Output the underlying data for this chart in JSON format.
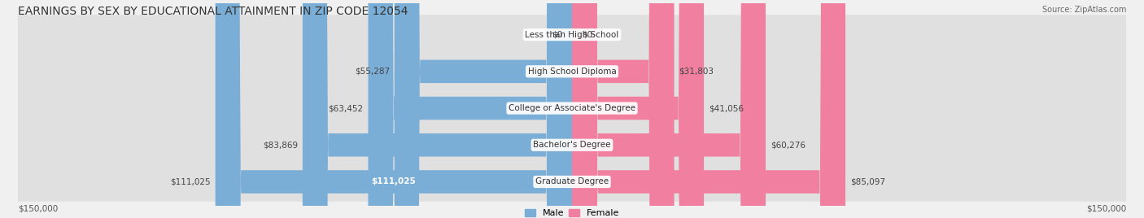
{
  "title": "EARNINGS BY SEX BY EDUCATIONAL ATTAINMENT IN ZIP CODE 12054",
  "source": "Source: ZipAtlas.com",
  "categories": [
    "Less than High School",
    "High School Diploma",
    "College or Associate's Degree",
    "Bachelor's Degree",
    "Graduate Degree"
  ],
  "male_values": [
    0,
    55287,
    63452,
    83869,
    111025
  ],
  "female_values": [
    0,
    31803,
    41056,
    60276,
    85097
  ],
  "male_color": "#7aaed6",
  "female_color": "#f07fa0",
  "male_label": "Male",
  "female_label": "Female",
  "max_value": 150000,
  "background_color": "#f0f0f0",
  "bar_bg_color": "#e8e8e8",
  "title_fontsize": 10,
  "label_fontsize": 8
}
